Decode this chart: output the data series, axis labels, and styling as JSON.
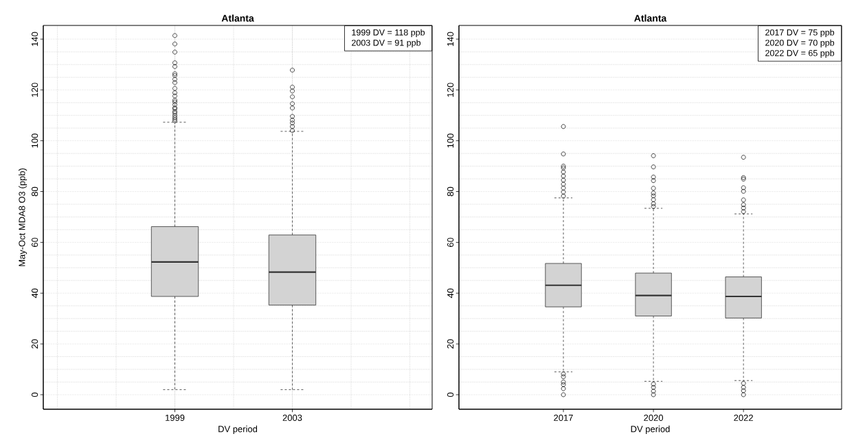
{
  "chart_data": [
    {
      "type": "box",
      "title": "Atlanta",
      "xlabel": "DV period",
      "ylabel": "May-Oct MDA8 O3 (ppb)",
      "categories": [
        "1999",
        "2003"
      ],
      "ylim": [
        -5.7,
        145.4
      ],
      "yticks": [
        0,
        20,
        40,
        60,
        80,
        100,
        120,
        140
      ],
      "grid": true,
      "annotations": [
        "1999 DV = 118 ppb",
        "2003 DV = 91 ppb"
      ],
      "series": [
        {
          "color": "#d3d3d3",
          "boxes": [
            {
              "low": 2.0,
              "q1": 38.7,
              "median": 52.3,
              "q3": 66.2,
              "high": 107.3,
              "outliers": [
                141.4,
                138.1,
                134.9,
                130.7,
                129.2,
                126.4,
                125.7,
                124.2,
                122.9,
                120.6,
                118.9,
                117.6,
                116.0,
                115.3,
                114.2,
                113.0,
                112.6,
                111.5,
                110.9,
                110.0,
                109.2,
                108.5,
                107.8
              ]
            },
            {
              "low": 2.0,
              "q1": 35.3,
              "median": 48.3,
              "q3": 62.9,
              "high": 103.7,
              "outliers": [
                127.8,
                121.1,
                119.6,
                117.3,
                114.6,
                112.9,
                109.6,
                108.1,
                107.0,
                105.6,
                104.0
              ]
            }
          ]
        }
      ]
    },
    {
      "type": "box",
      "title": "Atlanta",
      "xlabel": "DV period",
      "categories": [
        "2017",
        "2020",
        "2022"
      ],
      "ylim": [
        -5.7,
        145.4
      ],
      "yticks": [
        0,
        20,
        40,
        60,
        80,
        100,
        120,
        140
      ],
      "grid": "y",
      "annotations": [
        "2017 DV = 75 ppb",
        "2020 DV = 70 ppb",
        "2022 DV = 65 ppb"
      ],
      "series": [
        {
          "color": "#d3d3d3",
          "boxes": [
            {
              "low": 9.0,
              "q1": 34.6,
              "median": 43.1,
              "q3": 51.7,
              "high": 77.5,
              "outliers": [
                105.6,
                94.8,
                90.0,
                89.3,
                87.7,
                86.1,
                84.5,
                82.9,
                81.4,
                79.8,
                78.2,
                8.2,
                7.1,
                5.0,
                4.0,
                2.4,
                0.0
              ]
            },
            {
              "low": 5.3,
              "q1": 31.0,
              "median": 39.1,
              "q3": 47.9,
              "high": 73.4,
              "outliers": [
                94.1,
                89.7,
                85.7,
                84.3,
                81.3,
                79.4,
                78.3,
                76.8,
                75.2,
                74.1,
                4.2,
                2.9,
                1.4,
                0.0
              ]
            },
            {
              "low": 5.6,
              "q1": 30.2,
              "median": 38.7,
              "q3": 46.4,
              "high": 71.2,
              "outliers": [
                93.5,
                85.5,
                84.9,
                81.5,
                80.1,
                76.7,
                74.8,
                73.5,
                72.1,
                4.5,
                2.9,
                1.6,
                0.0
              ]
            }
          ]
        }
      ]
    }
  ]
}
